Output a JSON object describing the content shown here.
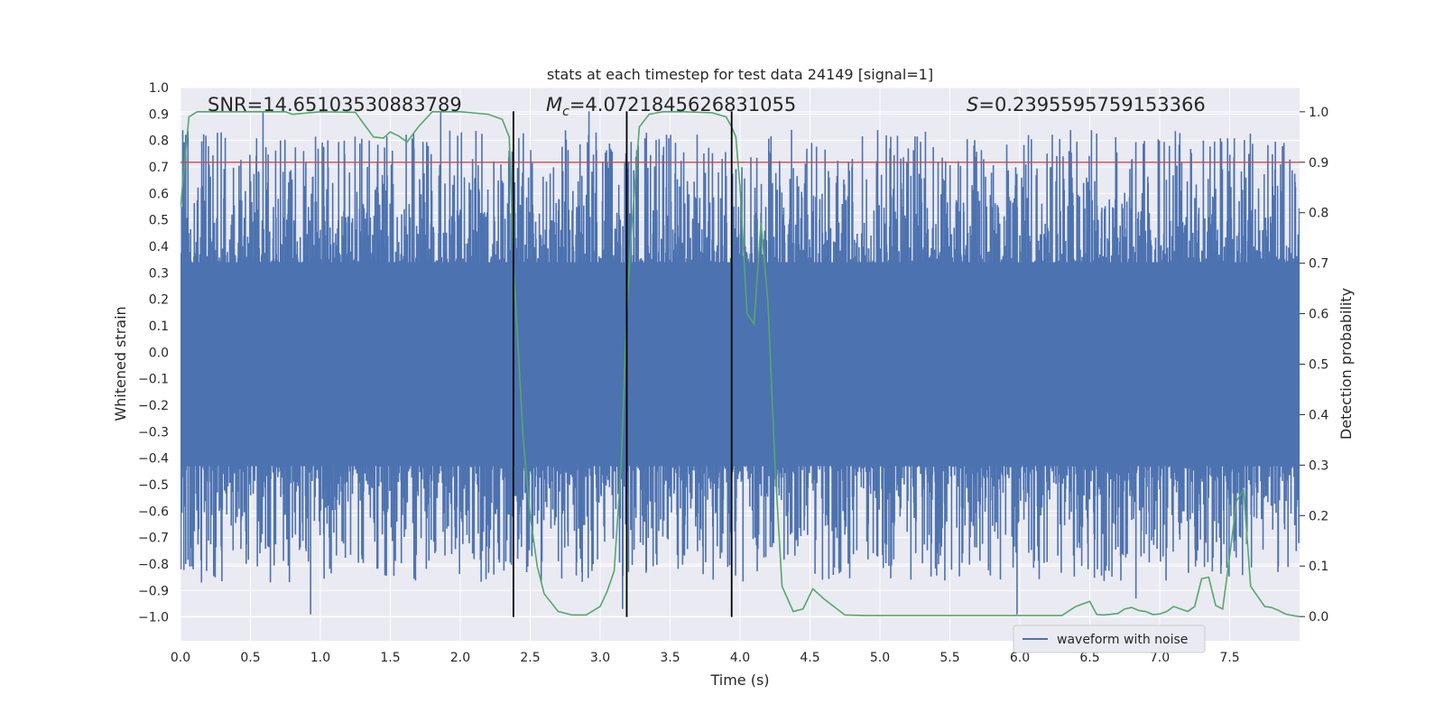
{
  "chart_data": {
    "type": "line",
    "title": "stats at each timestep for test data 24149 [signal=1]",
    "xlabel": "Time (s)",
    "ylabel": "Whitened strain",
    "y2label": "Detection probability",
    "xlim": [
      0.0,
      8.0
    ],
    "ylim": [
      -1.09,
      1.0
    ],
    "y2lim": [
      -0.048,
      1.048
    ],
    "xticks": [
      0.0,
      0.5,
      1.0,
      1.5,
      2.0,
      2.5,
      3.0,
      3.5,
      4.0,
      4.5,
      5.0,
      5.5,
      6.0,
      6.5,
      7.0,
      7.5
    ],
    "xtick_labels": [
      "0.0",
      "0.5",
      "1.0",
      "1.5",
      "2.0",
      "2.5",
      "3.0",
      "3.5",
      "4.0",
      "4.5",
      "5.0",
      "5.5",
      "6.0",
      "6.5",
      "7.0",
      "7.5"
    ],
    "yticks": [
      1.0,
      0.9,
      0.8,
      0.7,
      0.6,
      0.5,
      0.4,
      0.3,
      0.2,
      0.1,
      0.0,
      -0.1,
      -0.2,
      -0.3,
      -0.4,
      -0.5,
      -0.6,
      -0.7,
      -0.8,
      -0.9,
      -1.0
    ],
    "ytick_labels": [
      "1.0",
      "0.9",
      "0.8",
      "0.7",
      "0.6",
      "0.5",
      "0.4",
      "0.3",
      "0.2",
      "0.1",
      "0.0",
      "−0.1",
      "−0.2",
      "−0.3",
      "−0.4",
      "−0.5",
      "−0.6",
      "−0.7",
      "−0.8",
      "−0.9",
      "−1.0"
    ],
    "y2ticks": [
      1.0,
      0.9,
      0.8,
      0.7,
      0.6,
      0.5,
      0.4,
      0.3,
      0.2,
      0.1,
      0.0
    ],
    "y2tick_labels": [
      "1.0",
      "0.9",
      "0.8",
      "0.7",
      "0.6",
      "0.5",
      "0.4",
      "0.3",
      "0.2",
      "0.1",
      "0.0"
    ],
    "grid": true,
    "threshold_y2": 0.9,
    "event_lines_x": [
      2.38,
      3.19,
      3.94
    ],
    "event_line_range": [
      -1.0,
      0.91
    ],
    "annotations": {
      "snr": "SNR=14.65103530883789",
      "mc_symbol": "M",
      "mc_sub": "c",
      "mc_value": "=4.0721845626831055",
      "s_symbol": "S",
      "s_value": "=0.2395595759153366"
    },
    "legend": {
      "label": "waveform with noise",
      "position": "lower-right"
    },
    "waveform": {
      "name": "waveform with noise",
      "color": "#4c72b0",
      "band_top": 0.34,
      "band_bottom": -0.43,
      "envelope_max": 0.91,
      "envelope_min": -0.99,
      "spikes": [
        {
          "x": 0.93,
          "y": -0.99
        },
        {
          "x": 5.98,
          "y": -0.99
        },
        {
          "x": 0.59,
          "y": 0.91
        },
        {
          "x": 1.86,
          "y": 0.91
        },
        {
          "x": 2.92,
          "y": 0.91
        },
        {
          "x": 3.16,
          "y": -0.97
        },
        {
          "x": 0.15,
          "y": -0.87
        },
        {
          "x": 6.83,
          "y": -0.93
        }
      ]
    },
    "series": [
      {
        "name": "detection probability",
        "axis": "y2",
        "color": "#55a868",
        "x": [
          0.0,
          0.06,
          0.12,
          0.25,
          0.5,
          0.75,
          0.8,
          1.0,
          1.25,
          1.3,
          1.38,
          1.45,
          1.5,
          1.56,
          1.62,
          1.7,
          1.8,
          2.0,
          2.2,
          2.3,
          2.35,
          2.38,
          2.42,
          2.45,
          2.5,
          2.55,
          2.6,
          2.7,
          2.8,
          2.9,
          3.0,
          3.05,
          3.1,
          3.15,
          3.19,
          3.22,
          3.28,
          3.35,
          3.45,
          3.6,
          3.8,
          3.9,
          3.94,
          3.97,
          4.0,
          4.05,
          4.1,
          4.15,
          4.2,
          4.25,
          4.3,
          4.38,
          4.45,
          4.52,
          4.6,
          4.75,
          4.9,
          5.1,
          5.3,
          5.5,
          5.7,
          5.9,
          6.1,
          6.3,
          6.4,
          6.5,
          6.55,
          6.6,
          6.7,
          6.75,
          6.8,
          6.85,
          6.9,
          6.95,
          7.0,
          7.05,
          7.1,
          7.15,
          7.2,
          7.25,
          7.3,
          7.35,
          7.4,
          7.45,
          7.5,
          7.55,
          7.6,
          7.65,
          7.7,
          7.75,
          7.8,
          7.85,
          7.9,
          7.95,
          8.0
        ],
        "y": [
          0.81,
          0.99,
          1.0,
          1.0,
          1.0,
          1.0,
          0.995,
          1.0,
          0.999,
          0.98,
          0.95,
          0.948,
          0.96,
          0.952,
          0.94,
          0.97,
          1.0,
          1.0,
          0.995,
          0.985,
          0.95,
          0.7,
          0.5,
          0.35,
          0.2,
          0.1,
          0.045,
          0.01,
          0.003,
          0.003,
          0.02,
          0.05,
          0.09,
          0.3,
          0.6,
          0.75,
          0.97,
          0.995,
          1.0,
          1.0,
          0.998,
          0.99,
          0.97,
          0.95,
          0.85,
          0.6,
          0.58,
          0.78,
          0.62,
          0.3,
          0.06,
          0.01,
          0.015,
          0.055,
          0.035,
          0.003,
          0.002,
          0.002,
          0.002,
          0.002,
          0.002,
          0.002,
          0.002,
          0.002,
          0.02,
          0.03,
          0.004,
          0.003,
          0.006,
          0.015,
          0.018,
          0.012,
          0.01,
          0.004,
          0.005,
          0.01,
          0.02,
          0.015,
          0.01,
          0.02,
          0.075,
          0.078,
          0.022,
          0.015,
          0.12,
          0.23,
          0.25,
          0.06,
          0.04,
          0.02,
          0.018,
          0.012,
          0.005,
          0.002,
          0.0
        ]
      },
      {
        "name": "threshold",
        "axis": "y2",
        "color": "#c44e52",
        "x": [
          0.0,
          8.0
        ],
        "y": [
          0.9,
          0.9
        ]
      }
    ]
  }
}
